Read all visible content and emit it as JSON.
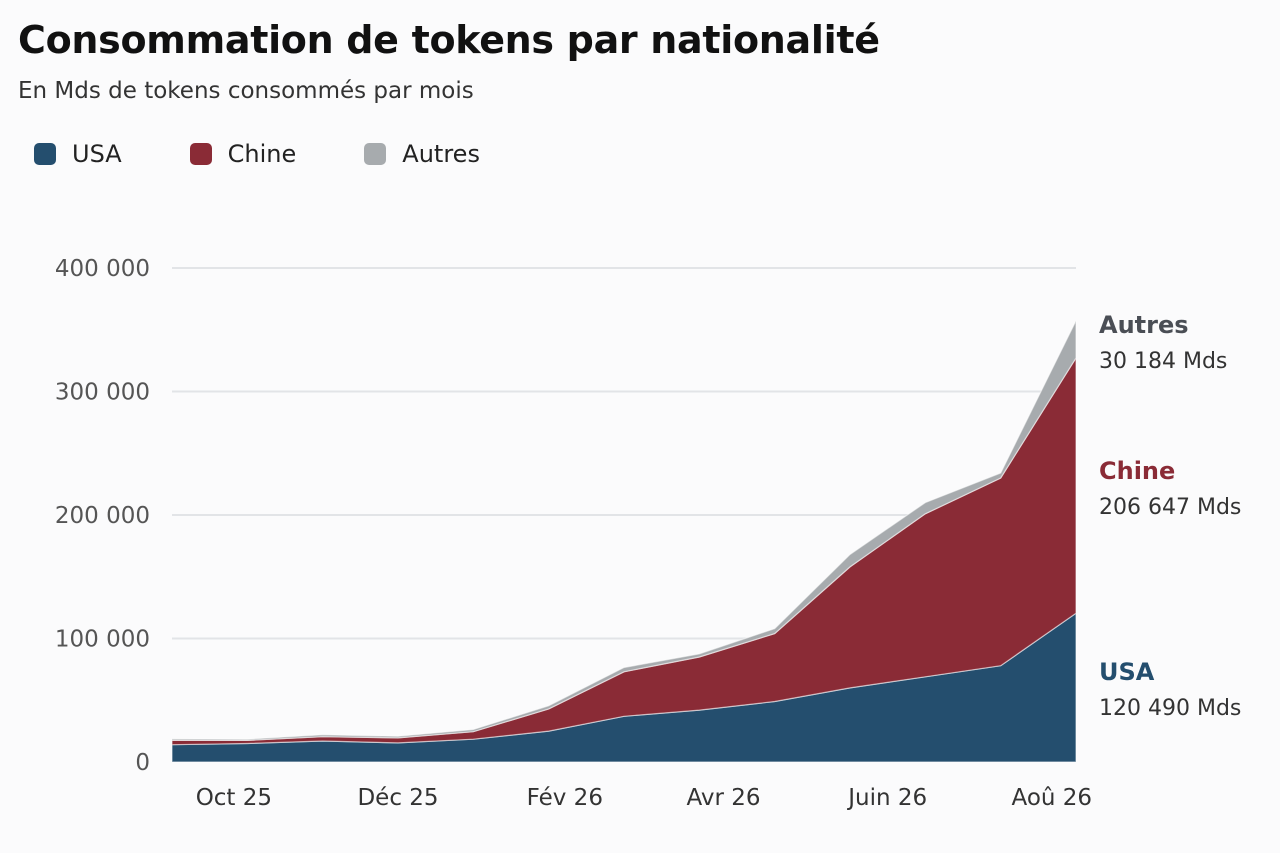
{
  "chart_data": {
    "type": "area",
    "stacked": true,
    "title": "Consommation de tokens par nationalité",
    "subtitle": "En Mds de tokens consommés par mois",
    "ylim": [
      0,
      400000
    ],
    "y_ticks": [
      {
        "value": 0,
        "label": "0"
      },
      {
        "value": 100000,
        "label": "100 000"
      },
      {
        "value": 200000,
        "label": "200 000"
      },
      {
        "value": 300000,
        "label": "300 000"
      },
      {
        "value": 400000,
        "label": "400 000"
      }
    ],
    "x_ticks": [
      {
        "value": "2025-10",
        "label": "Oct 25"
      },
      {
        "value": "2025-12",
        "label": "Déc 25"
      },
      {
        "value": "2026-02",
        "label": "Fév 26"
      },
      {
        "value": "2026-04",
        "label": "Avr 26"
      },
      {
        "value": "2026-06",
        "label": "Juin 26"
      },
      {
        "value": "2026-08",
        "label": "Aoû 26"
      }
    ],
    "x": [
      "2025-09-08",
      "2025-10-06",
      "2025-11-03",
      "2025-12-01",
      "2025-12-29",
      "2026-01-26",
      "2026-02-23",
      "2026-03-23",
      "2026-04-20",
      "2026-05-18",
      "2026-06-15",
      "2026-07-13",
      "2026-08-10"
    ],
    "series": [
      {
        "name": "USA",
        "color": "#244e6e",
        "values": [
          14000,
          15000,
          17000,
          15500,
          18500,
          25000,
          37000,
          42000,
          49000,
          60000,
          69000,
          78000,
          120490
        ]
      },
      {
        "name": "Chine",
        "color": "#8a2b36",
        "values": [
          3500,
          2500,
          3500,
          4000,
          6000,
          18000,
          36000,
          43000,
          55000,
          98000,
          132000,
          152000,
          206647
        ]
      },
      {
        "name": "Autres",
        "color": "#a7abae",
        "values": [
          1200,
          1000,
          1500,
          1300,
          1800,
          2500,
          3500,
          2500,
          4000,
          10000,
          9000,
          4000,
          30184
        ]
      }
    ],
    "end_labels": [
      {
        "name": "Autres",
        "value_label": "30 184 Mds",
        "color": "#4a4e55"
      },
      {
        "name": "Chine",
        "value_label": "206 647 Mds",
        "color": "#8a2b36"
      },
      {
        "name": "USA",
        "value_label": "120 490 Mds",
        "color": "#244e6e"
      }
    ],
    "grid": true,
    "legend_position": "top-left"
  }
}
